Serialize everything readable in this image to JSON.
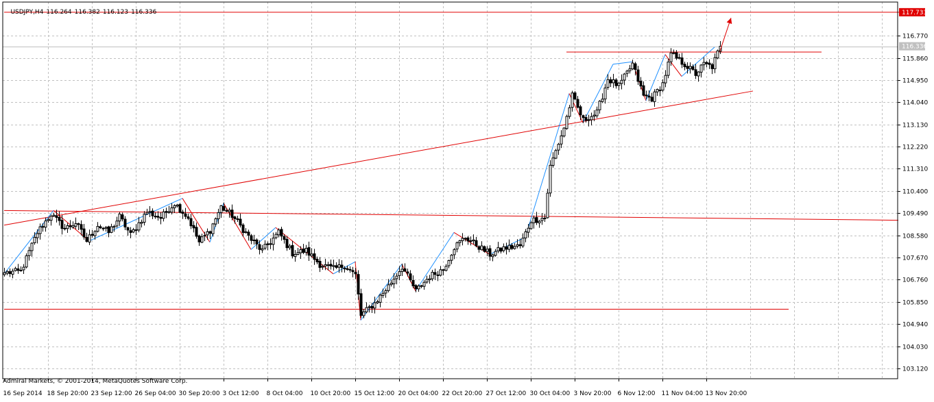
{
  "header": {
    "symbol_timeframe": "USDJPY,H4",
    "open": "116.264",
    "high": "116.382",
    "low": "116.123",
    "close": "116.336"
  },
  "footer": {
    "copyright": "Admiral Markets, © 2001-2014, MetaQuotes Software Corp."
  },
  "colors": {
    "background": "#ffffff",
    "grid": "#c0c0c0",
    "candle": "#000000",
    "trend_line": "#e00000",
    "zigzag_up": "#1e90ff",
    "zigzag_down": "#e00000",
    "price_badge_red": "#e00000",
    "price_badge_gray": "#c0c0c0"
  },
  "chart_data": {
    "type": "candlestick",
    "title": "USDJPY,H4",
    "ylim": [
      102.7,
      118.15
    ],
    "y_ticks": [
      "117.733",
      "116.770",
      "115.860",
      "114.950",
      "114.040",
      "113.130",
      "112.220",
      "111.310",
      "110.400",
      "109.490",
      "108.580",
      "107.670",
      "106.760",
      "105.850",
      "104.940",
      "104.030",
      "103.120"
    ],
    "x_ticks": [
      "16 Sep 2014",
      "18 Sep 20:00",
      "23 Sep 12:00",
      "26 Sep 04:00",
      "30 Sep 20:00",
      "3 Oct 12:00",
      "8 Oct 04:00",
      "10 Oct 20:00",
      "15 Oct 12:00",
      "20 Oct 04:00",
      "22 Oct 20:00",
      "27 Oct 12:00",
      "30 Oct 04:00",
      "3 Nov 20:00",
      "6 Nov 12:00",
      "11 Nov 04:00",
      "13 Nov 20:00"
    ],
    "current_price": "116.336",
    "resistance_level": "117.733",
    "close_anchors": [
      {
        "i": 0,
        "v": 107.05
      },
      {
        "i": 6,
        "v": 107.1
      },
      {
        "i": 12,
        "v": 108.7
      },
      {
        "i": 17,
        "v": 109.45
      },
      {
        "i": 22,
        "v": 108.85
      },
      {
        "i": 26,
        "v": 109.1
      },
      {
        "i": 30,
        "v": 108.35
      },
      {
        "i": 34,
        "v": 109.0
      },
      {
        "i": 38,
        "v": 108.7
      },
      {
        "i": 42,
        "v": 109.35
      },
      {
        "i": 46,
        "v": 108.6
      },
      {
        "i": 52,
        "v": 109.55
      },
      {
        "i": 57,
        "v": 109.3
      },
      {
        "i": 62,
        "v": 109.9
      },
      {
        "i": 67,
        "v": 109.3
      },
      {
        "i": 71,
        "v": 108.3
      },
      {
        "i": 75,
        "v": 108.8
      },
      {
        "i": 79,
        "v": 109.75
      },
      {
        "i": 83,
        "v": 109.4
      },
      {
        "i": 90,
        "v": 108.4
      },
      {
        "i": 94,
        "v": 107.95
      },
      {
        "i": 100,
        "v": 108.7
      },
      {
        "i": 105,
        "v": 107.85
      },
      {
        "i": 110,
        "v": 107.95
      },
      {
        "i": 115,
        "v": 107.4
      },
      {
        "i": 120,
        "v": 107.2
      },
      {
        "i": 124,
        "v": 107.35
      },
      {
        "i": 128,
        "v": 106.95
      },
      {
        "i": 130,
        "v": 105.3
      },
      {
        "i": 135,
        "v": 105.8
      },
      {
        "i": 140,
        "v": 106.5
      },
      {
        "i": 145,
        "v": 107.3
      },
      {
        "i": 150,
        "v": 106.3
      },
      {
        "i": 155,
        "v": 106.9
      },
      {
        "i": 160,
        "v": 107.2
      },
      {
        "i": 164,
        "v": 108.1
      },
      {
        "i": 168,
        "v": 108.5
      },
      {
        "i": 172,
        "v": 108.2
      },
      {
        "i": 177,
        "v": 107.8
      },
      {
        "i": 182,
        "v": 108.05
      },
      {
        "i": 188,
        "v": 108.15
      },
      {
        "i": 192,
        "v": 109.2
      },
      {
        "i": 197,
        "v": 109.3
      },
      {
        "i": 199,
        "v": 111.4
      },
      {
        "i": 204,
        "v": 113.0
      },
      {
        "i": 207,
        "v": 114.3
      },
      {
        "i": 211,
        "v": 113.3
      },
      {
        "i": 216,
        "v": 113.6
      },
      {
        "i": 220,
        "v": 115.0
      },
      {
        "i": 224,
        "v": 114.7
      },
      {
        "i": 229,
        "v": 115.6
      },
      {
        "i": 233,
        "v": 114.3
      },
      {
        "i": 236,
        "v": 114.2
      },
      {
        "i": 240,
        "v": 114.8
      },
      {
        "i": 243,
        "v": 116.0
      },
      {
        "i": 248,
        "v": 115.6
      },
      {
        "i": 252,
        "v": 115.2
      },
      {
        "i": 255,
        "v": 115.6
      },
      {
        "i": 258,
        "v": 115.5
      },
      {
        "i": 261,
        "v": 116.336
      }
    ],
    "trend_lines": [
      {
        "name": "long-rising-trendline",
        "from": {
          "i": 0,
          "v": 109.0
        },
        "to": {
          "i": 273,
          "v": 114.5
        }
      },
      {
        "name": "flat-trendline",
        "from": {
          "i": 0,
          "v": 109.6
        },
        "to": {
          "i": 326,
          "v": 109.2
        }
      },
      {
        "name": "support-line",
        "from": {
          "i": 0,
          "v": 105.55
        },
        "to": {
          "i": 286,
          "v": 105.55
        }
      },
      {
        "name": "recent-resistance-line",
        "from": {
          "i": 205,
          "v": 116.1
        },
        "to": {
          "i": 298,
          "v": 116.1
        }
      },
      {
        "name": "top-resistance-line",
        "from": {
          "i": 0,
          "v": 117.733
        },
        "to": {
          "i": 335,
          "v": 117.733
        }
      }
    ],
    "zigzag": [
      {
        "i": 0,
        "v": 107.0
      },
      {
        "i": 18,
        "v": 109.6
      },
      {
        "i": 31,
        "v": 108.35
      },
      {
        "i": 65,
        "v": 110.1
      },
      {
        "i": 75,
        "v": 108.3
      },
      {
        "i": 80,
        "v": 109.9
      },
      {
        "i": 90,
        "v": 108.0
      },
      {
        "i": 99,
        "v": 108.9
      },
      {
        "i": 120,
        "v": 107.0
      },
      {
        "i": 128,
        "v": 107.5
      },
      {
        "i": 130,
        "v": 105.1
      },
      {
        "i": 145,
        "v": 107.4
      },
      {
        "i": 150,
        "v": 106.3
      },
      {
        "i": 164,
        "v": 108.7
      },
      {
        "i": 177,
        "v": 107.8
      },
      {
        "i": 190,
        "v": 108.5
      },
      {
        "i": 206,
        "v": 114.4
      },
      {
        "i": 211,
        "v": 113.2
      },
      {
        "i": 222,
        "v": 115.6
      },
      {
        "i": 229,
        "v": 115.7
      },
      {
        "i": 234,
        "v": 114.1
      },
      {
        "i": 241,
        "v": 116.0
      },
      {
        "i": 247,
        "v": 115.1
      },
      {
        "i": 259,
        "v": 116.3
      }
    ],
    "forecast_arrow": {
      "from": {
        "i": 261,
        "v": 116.15
      },
      "to": {
        "i": 265,
        "v": 117.5
      }
    }
  }
}
